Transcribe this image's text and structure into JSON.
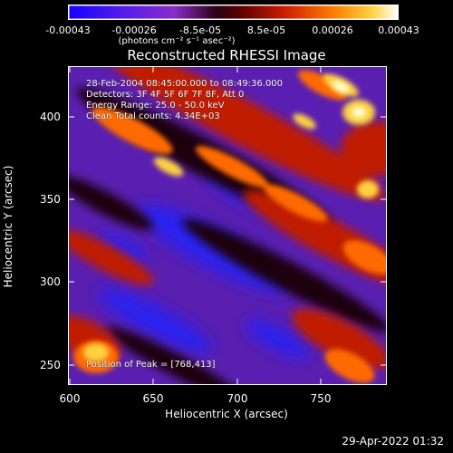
{
  "colorbar": {
    "tick_labels": [
      "-0.00043",
      "-0.00026",
      "-8.5e-05",
      "8.5e-05",
      "0.00026",
      "0.00043"
    ],
    "units_label": "(photons cm⁻² s⁻¹ asec⁻²)",
    "colors": [
      "#1a00ff",
      "#7a22dd",
      "#3a0018",
      "#a01010",
      "#ff5a00",
      "#ffffe8"
    ]
  },
  "plot": {
    "title": "Reconstructed RHESSI Image",
    "xlabel": "Heliocentric X (arcsec)",
    "ylabel": "Heliocentric Y (arcsec)",
    "x_ticks": [
      "600",
      "650",
      "700",
      "750"
    ],
    "y_ticks": [
      "250",
      "300",
      "350",
      "400"
    ],
    "xlim": [
      600,
      790
    ],
    "ylim": [
      237,
      427
    ],
    "annotations": [
      "28-Feb-2004 08:45:00.000 to 08:49:36.000",
      "Detectors: 3F 4F 5F 6F 7F 8F, Att 0",
      "Energy Range: 25.0 - 50.0 keV",
      "Clean    Total counts: 4.34E+03"
    ],
    "peak_label": "Position of Peak = [768,413]"
  },
  "footer": {
    "date": "29-Apr-2022 01:32"
  }
}
